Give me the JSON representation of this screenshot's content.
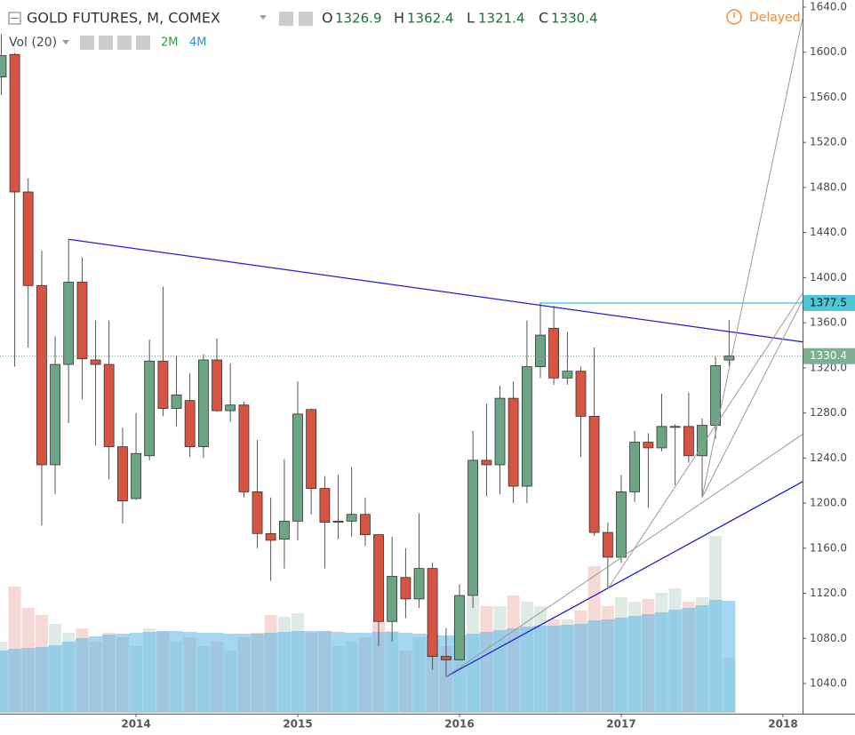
{
  "chart_data": {
    "type": "candlestick",
    "title": "GOLD FUTURES, M, COMEX",
    "volume_title": "Vol (20)",
    "volume_buttons": [
      "2M",
      "4M"
    ],
    "status": "Delayed",
    "ohlc_letters": [
      "O",
      "H",
      "L",
      "C"
    ],
    "x": [
      2013.167,
      2013.25,
      2013.333,
      2013.417,
      2013.5,
      2013.583,
      2013.667,
      2013.75,
      2013.833,
      2013.917,
      2014,
      2014.083,
      2014.167,
      2014.25,
      2014.333,
      2014.417,
      2014.5,
      2014.583,
      2014.667,
      2014.75,
      2014.833,
      2014.917,
      2015,
      2015.083,
      2015.167,
      2015.25,
      2015.333,
      2015.417,
      2015.5,
      2015.583,
      2015.667,
      2015.75,
      2015.833,
      2015.917,
      2016,
      2016.083,
      2016.167,
      2016.25,
      2016.333,
      2016.417,
      2016.5,
      2016.583,
      2016.667,
      2016.75,
      2016.833,
      2016.917,
      2017,
      2017.083,
      2017.167,
      2017.25,
      2017.333,
      2017.417,
      2017.5,
      2017.583,
      2017.667
    ],
    "open": [
      1578,
      1598,
      1476,
      1393,
      1234,
      1323,
      1396,
      1327,
      1323,
      1250,
      1204,
      1242,
      1326,
      1284,
      1291,
      1250,
      1327,
      1282,
      1287,
      1210,
      1173,
      1168,
      1184,
      1283,
      1213,
      1183,
      1184,
      1190,
      1172,
      1095,
      1134,
      1115,
      1142,
      1064,
      1061,
      1118,
      1238,
      1234,
      1293,
      1215,
      1321,
      1355,
      1311,
      1317,
      1277,
      1174,
      1152,
      1210,
      1254,
      1249,
      1268,
      1268,
      1242,
      1269,
      1326.9
    ],
    "high": [
      1616,
      1605,
      1488,
      1424,
      1348,
      1434,
      1418,
      1362,
      1362,
      1267,
      1280,
      1345,
      1392,
      1331,
      1315,
      1332,
      1346,
      1324,
      1290,
      1256,
      1205,
      1239,
      1308,
      1284,
      1224,
      1225,
      1232,
      1205,
      1172,
      1170,
      1160,
      1191,
      1147,
      1089,
      1128,
      1264,
      1288,
      1304,
      1308,
      1362,
      1378,
      1375,
      1352,
      1321,
      1338,
      1183,
      1225,
      1264,
      1262,
      1297,
      1270,
      1298,
      1275,
      1330,
      1362.4
    ],
    "low": [
      1562,
      1321,
      1338,
      1180,
      1208,
      1271,
      1292,
      1251,
      1221,
      1182,
      1203,
      1238,
      1277,
      1268,
      1241,
      1240,
      1281,
      1272,
      1205,
      1160,
      1131,
      1142,
      1167,
      1190,
      1142,
      1168,
      1170,
      1162,
      1073,
      1077,
      1098,
      1107,
      1052,
      1046,
      1062,
      1107,
      1206,
      1208,
      1200,
      1200,
      1311,
      1305,
      1305,
      1241,
      1171,
      1124,
      1147,
      1201,
      1196,
      1246,
      1216,
      1236,
      1205,
      1257,
      1321.4
    ],
    "close": [
      1597,
      1476,
      1393,
      1234,
      1323,
      1396,
      1328,
      1323,
      1250,
      1202,
      1244,
      1326,
      1284,
      1296,
      1250,
      1327,
      1282,
      1287,
      1210,
      1173,
      1167,
      1184,
      1279,
      1213,
      1183,
      1184,
      1190,
      1172,
      1095,
      1135,
      1115,
      1142,
      1064,
      1061,
      1118,
      1238,
      1234,
      1293,
      1215,
      1321,
      1349,
      1311,
      1317,
      1277,
      1174,
      1152,
      1210,
      1254,
      1249,
      1268,
      1268,
      1242,
      1269,
      1322,
      1330.4
    ],
    "volume": [
      80,
      142,
      118,
      110,
      100,
      90,
      95,
      80,
      90,
      85,
      75,
      95,
      92,
      80,
      85,
      75,
      80,
      70,
      85,
      90,
      110,
      108,
      112,
      90,
      92,
      75,
      80,
      85,
      105,
      92,
      70,
      85,
      80,
      75,
      95,
      130,
      120,
      120,
      132,
      125,
      120,
      105,
      105,
      115,
      165,
      120,
      130,
      125,
      128,
      135,
      140,
      125,
      130,
      199,
      62
    ],
    "volume_ma": [
      70,
      72,
      73,
      74,
      76,
      80,
      84,
      86,
      88,
      89,
      90,
      91,
      92,
      92,
      91,
      90,
      90,
      89,
      89,
      89,
      90,
      91,
      92,
      92,
      92,
      91,
      90,
      90,
      91,
      91,
      90,
      89,
      88,
      87,
      87,
      89,
      91,
      93,
      95,
      97,
      98,
      98,
      99,
      100,
      104,
      105,
      107,
      109,
      111,
      113,
      116,
      118,
      121,
      127,
      126
    ],
    "up_color": "#6ba583",
    "down_color": "#d75442",
    "volume_ma_color": "#5bb7ea",
    "xlim": [
      2013.159,
      2018.121
    ],
    "xticks": [
      2014,
      2015,
      2016,
      2017,
      2018
    ],
    "ylim": [
      1013.2,
      1646.3
    ],
    "yticks": [
      {
        "value": 1040,
        "label": "1040.0"
      },
      {
        "value": 1080,
        "label": "1080.0"
      },
      {
        "value": 1120,
        "label": "1120.0"
      },
      {
        "value": 1160,
        "label": "1160.0"
      },
      {
        "value": 1200,
        "label": "1200.0"
      },
      {
        "value": 1240,
        "label": "1240.0"
      },
      {
        "value": 1280,
        "label": "1280.0"
      },
      {
        "value": 1320,
        "label": "1320.0"
      },
      {
        "value": 1360,
        "label": "1360.0"
      },
      {
        "value": 1400,
        "label": "1400.0"
      },
      {
        "value": 1440,
        "label": "1440.0"
      },
      {
        "value": 1480,
        "label": "1480.0"
      },
      {
        "value": 1520,
        "label": "1520.0"
      },
      {
        "value": 1560,
        "label": "1560.0"
      },
      {
        "value": 1600,
        "label": "1600.0"
      },
      {
        "value": 1640,
        "label": "1640.0"
      }
    ],
    "vlim": [
      0,
      250
    ],
    "lines": [
      {
        "color": "#1f1fcc",
        "x": [
          2013.583,
          2018.121
        ],
        "y": [
          1434,
          1343
        ]
      },
      {
        "color": "#1f1fcc",
        "x": [
          2015.917,
          2018.121
        ],
        "y": [
          1046,
          1219
        ]
      },
      {
        "color": "#9a9a9a",
        "x": [
          2015.917,
          2018.121
        ],
        "y": [
          1046,
          1261
        ]
      },
      {
        "color": "#9a9a9a",
        "x": [
          2016.917,
          2018.121
        ],
        "y": [
          1124,
          1386
        ]
      },
      {
        "color": "#9a9a9a",
        "x": [
          2017.5,
          2018.121
        ],
        "y": [
          1205,
          1380
        ]
      },
      {
        "color": "#9a9a9a",
        "x": [
          2017.5,
          2018.121
        ],
        "y": [
          1205,
          1630
        ]
      }
    ],
    "level": {
      "color": "#4fc6d6",
      "x": [
        2016.5,
        2018.121
      ],
      "value": 1377.5
    }
  }
}
